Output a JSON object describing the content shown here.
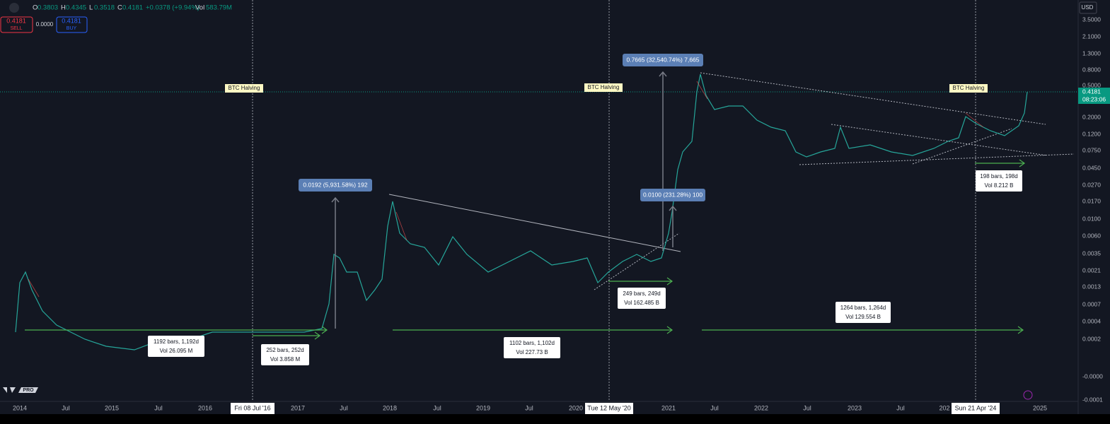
{
  "header": {
    "o_label": "O",
    "o": "0.3803",
    "h_label": "H",
    "h": "0.4345",
    "l_label": "L",
    "l": "0.3518",
    "c_label": "C",
    "c": "0.4181",
    "change": "+0.0378 (+9.94%)",
    "vol_label": "Vol",
    "vol": "583.79M"
  },
  "trade": {
    "sell_price": "0.4181",
    "sell": "SELL",
    "spread": "0.0000",
    "buy_price": "0.4181",
    "buy": "BUY"
  },
  "currency": "USD",
  "brand": "PRO",
  "last_price": {
    "price": "0.4181",
    "countdown": "08:23:06"
  },
  "price_axis": [
    "3.5000",
    "2.1000",
    "1.3000",
    "0.8000",
    "0.5000",
    "0.2000",
    "0.1200",
    "0.0750",
    "0.0450",
    "0.0270",
    "0.0170",
    "0.0100",
    "0.0060",
    "0.0035",
    "0.0021",
    "0.0013",
    "0.0007",
    "0.0004",
    "0.0002",
    "-0.0000",
    "-0.0001"
  ],
  "time_axis": [
    "2014",
    "Jul",
    "2015",
    "Jul",
    "2016",
    "2017",
    "Jul",
    "2018",
    "Jul",
    "2019",
    "Jul",
    "2020",
    "2021",
    "Jul",
    "2022",
    "Jul",
    "2023",
    "Jul",
    "202",
    "2025"
  ],
  "crosshair_dates": [
    "Fri 08 Jul '16",
    "Tue 12 May '20",
    "Sun 21 Apr '24"
  ],
  "halvings": [
    "BTC Halving",
    "BTC Halving",
    "BTC Halving"
  ],
  "measures": [
    "0.0192 (5,931.58%) 192",
    "0.7665 (32,540.74%) 7,665",
    "0.0100 (231.28%) 100"
  ],
  "ranges": [
    {
      "bars": "1192 bars, 1,192d",
      "vol": "Vol 26.095 M"
    },
    {
      "bars": "252 bars, 252d",
      "vol": "Vol 3.858 M"
    },
    {
      "bars": "1102 bars, 1,102d",
      "vol": "Vol 227.73 B"
    },
    {
      "bars": "249 bars, 249d",
      "vol": "Vol 162.485 B"
    },
    {
      "bars": "1264 bars, 1,264d",
      "vol": "Vol 129.554 B"
    },
    {
      "bars": "198 bars, 198d",
      "vol": "Vol 8.212 B"
    }
  ]
}
